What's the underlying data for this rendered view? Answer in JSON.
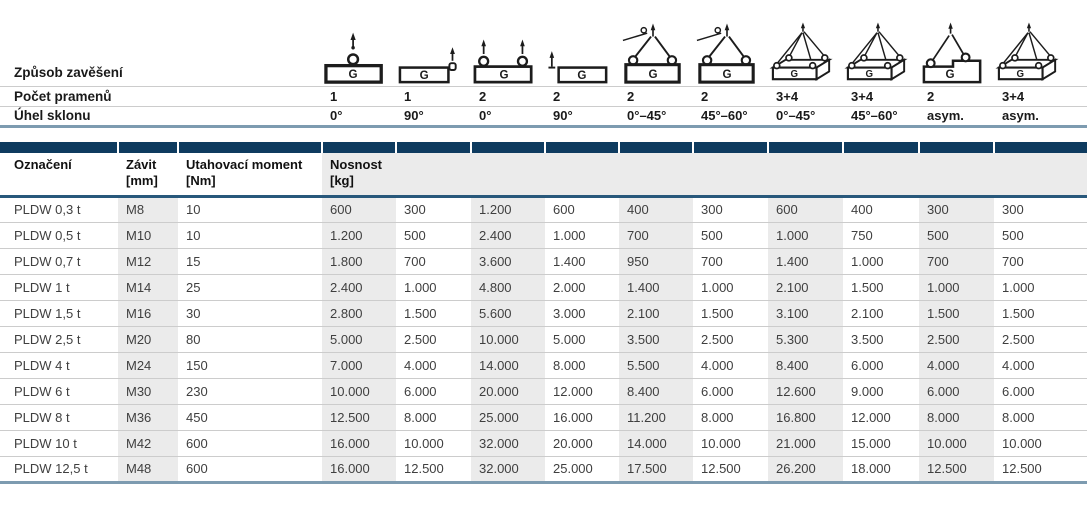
{
  "suspension": {
    "labels": {
      "method": "Způsob zavěšení",
      "strands": "Počet pramenů",
      "angle": "Úhel sklonu"
    },
    "icon_box_label": "G",
    "columns": [
      {
        "icon": "one-leg-vertical-icon",
        "symbol": "sym-ring-top",
        "strands": "1",
        "angle": "0°"
      },
      {
        "icon": "one-leg-side-icon",
        "symbol": "sym-ring-side",
        "strands": "1",
        "angle": "90°"
      },
      {
        "icon": "two-leg-vertical-icon",
        "symbol": "sym-two-rings-top",
        "strands": "2",
        "angle": "0°"
      },
      {
        "icon": "two-leg-side-icon",
        "symbol": "sym-two-side",
        "strands": "2",
        "angle": "90°"
      },
      {
        "icon": "two-leg-sling-icon",
        "symbol": "sym-two-sling",
        "strands": "2",
        "angle": "0°–45°"
      },
      {
        "icon": "two-leg-sling-icon",
        "symbol": "sym-two-sling",
        "strands": "2",
        "angle": "45°–60°"
      },
      {
        "icon": "multi-leg-sling-icon",
        "symbol": "sym-box-sling",
        "strands": "3+4",
        "angle": "0°–45°"
      },
      {
        "icon": "multi-leg-sling-icon",
        "symbol": "sym-box-sling",
        "strands": "3+4",
        "angle": "45°–60°"
      },
      {
        "icon": "two-leg-asym-icon",
        "symbol": "sym-asym-sling",
        "strands": "2",
        "angle": "asym."
      },
      {
        "icon": "multi-leg-asym-icon",
        "symbol": "sym-box-sling",
        "strands": "3+4",
        "angle": "asym."
      }
    ]
  },
  "table": {
    "headers": {
      "designation": "Označení",
      "thread": "Závit",
      "thread_unit": "[mm]",
      "torque": "Utahovací moment",
      "torque_unit": "[Nm]",
      "capacity": "Nosnost",
      "capacity_unit": "[kg]"
    },
    "rows": [
      {
        "name": "PLDW 0,3 t",
        "thread": "M8",
        "torque": "10",
        "loads": [
          "600",
          "300",
          "1.200",
          "600",
          "400",
          "300",
          "600",
          "400",
          "300",
          "300"
        ]
      },
      {
        "name": "PLDW 0,5 t",
        "thread": "M10",
        "torque": "10",
        "loads": [
          "1.200",
          "500",
          "2.400",
          "1.000",
          "700",
          "500",
          "1.000",
          "750",
          "500",
          "500"
        ]
      },
      {
        "name": "PLDW 0,7 t",
        "thread": "M12",
        "torque": "15",
        "loads": [
          "1.800",
          "700",
          "3.600",
          "1.400",
          "950",
          "700",
          "1.400",
          "1.000",
          "700",
          "700"
        ]
      },
      {
        "name": "PLDW 1 t",
        "thread": "M14",
        "torque": "25",
        "loads": [
          "2.400",
          "1.000",
          "4.800",
          "2.000",
          "1.400",
          "1.000",
          "2.100",
          "1.500",
          "1.000",
          "1.000"
        ]
      },
      {
        "name": "PLDW 1,5 t",
        "thread": "M16",
        "torque": "30",
        "loads": [
          "2.800",
          "1.500",
          "5.600",
          "3.000",
          "2.100",
          "1.500",
          "3.100",
          "2.100",
          "1.500",
          "1.500"
        ]
      },
      {
        "name": "PLDW 2,5 t",
        "thread": "M20",
        "torque": "80",
        "loads": [
          "5.000",
          "2.500",
          "10.000",
          "5.000",
          "3.500",
          "2.500",
          "5.300",
          "3.500",
          "2.500",
          "2.500"
        ]
      },
      {
        "name": "PLDW 4 t",
        "thread": "M24",
        "torque": "150",
        "loads": [
          "7.000",
          "4.000",
          "14.000",
          "8.000",
          "5.500",
          "4.000",
          "8.400",
          "6.000",
          "4.000",
          "4.000"
        ]
      },
      {
        "name": "PLDW 6 t",
        "thread": "M30",
        "torque": "230",
        "loads": [
          "10.000",
          "6.000",
          "20.000",
          "12.000",
          "8.400",
          "6.000",
          "12.600",
          "9.000",
          "6.000",
          "6.000"
        ]
      },
      {
        "name": "PLDW 8 t",
        "thread": "M36",
        "torque": "450",
        "loads": [
          "12.500",
          "8.000",
          "25.000",
          "16.000",
          "11.200",
          "8.000",
          "16.800",
          "12.000",
          "8.000",
          "8.000"
        ]
      },
      {
        "name": "PLDW 10 t",
        "thread": "M42",
        "torque": "600",
        "loads": [
          "16.000",
          "10.000",
          "32.000",
          "20.000",
          "14.000",
          "10.000",
          "21.000",
          "15.000",
          "10.000",
          "10.000"
        ]
      },
      {
        "name": "PLDW 12,5 t",
        "thread": "M48",
        "torque": "600",
        "loads": [
          "16.000",
          "12.500",
          "32.000",
          "25.000",
          "17.500",
          "12.500",
          "26.200",
          "18.000",
          "12.500",
          "12.500"
        ]
      }
    ]
  },
  "colors": {
    "group_bar": "#0e3b5f",
    "header_rule": "#28587b",
    "bottom_rule": "#7d9bb0",
    "column_shade": "#ebebeb",
    "row_divider": "#cccccc",
    "text": "#3f3f3f"
  }
}
